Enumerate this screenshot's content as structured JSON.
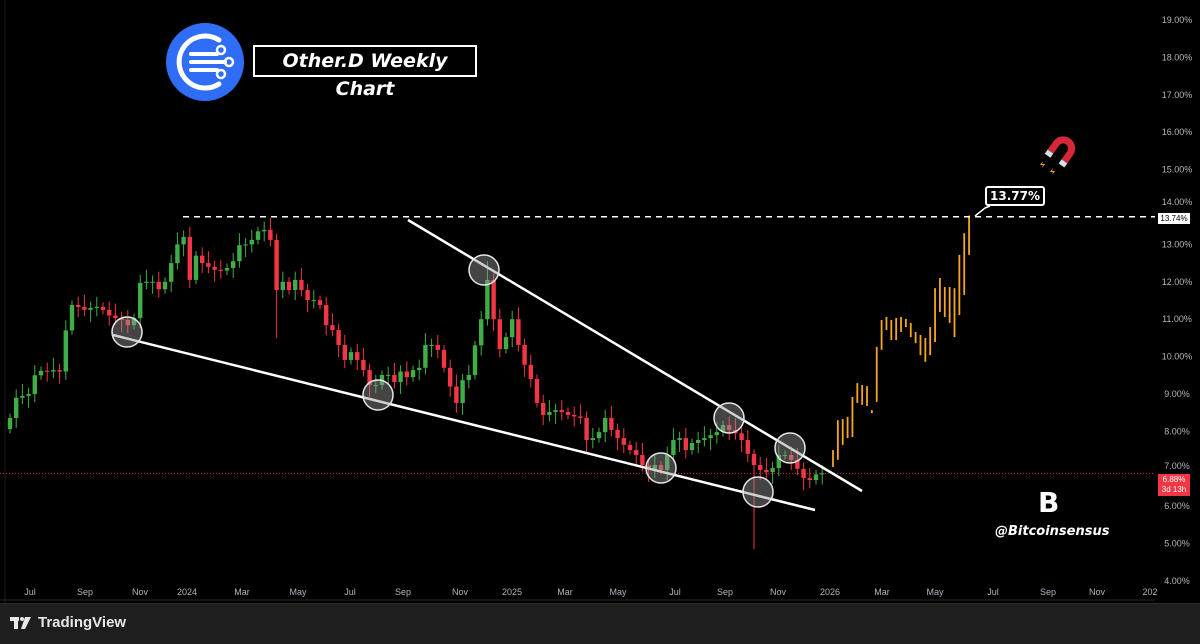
{
  "header": {
    "title": "Other.D Weekly Chart",
    "brand_logo_icon": "circuit-c-logo-icon",
    "brand_color": "#2f6df6"
  },
  "annotations": {
    "target_label": "13.77%",
    "magnet_icon": "magnet-icon",
    "watermark_letter": "B",
    "handle": "@Bitcoinsensus"
  },
  "footer": {
    "brand": "TradingView",
    "logo_icon": "tradingview-logo-icon"
  },
  "chart_data": {
    "type": "candlestick",
    "timeframe": "weekly",
    "y_axis": {
      "ticks": [
        "19.00%",
        "18.00%",
        "17.00%",
        "16.00%",
        "15.00%",
        "14.00%",
        "13.00%",
        "12.00%",
        "11.00%",
        "10.00%",
        "9.00%",
        "8.00%",
        "7.00%",
        "6.00%",
        "5.00%",
        "4.00%"
      ],
      "range": [
        4,
        19
      ],
      "unit": "%"
    },
    "x_axis": {
      "ticks": [
        "Jul",
        "Sep",
        "Nov",
        "2024",
        "Mar",
        "May",
        "Jul",
        "Sep",
        "Nov",
        "2025",
        "Mar",
        "May",
        "Jul",
        "Sep",
        "Nov",
        "2026",
        "Mar",
        "May",
        "Jul",
        "Sep",
        "Nov",
        "202"
      ]
    },
    "grid": false,
    "colors": {
      "up": "#3fae49",
      "down": "#f23645",
      "projection": "#f5a623",
      "lines": "#ffffff"
    },
    "closes": [
      8.36,
      8.9,
      8.95,
      9.0,
      9.5,
      9.62,
      9.6,
      9.64,
      9.6,
      10.7,
      11.38,
      11.33,
      11.25,
      11.3,
      11.33,
      11.25,
      11.1,
      11.03,
      10.98,
      10.84,
      11.03,
      11.97,
      12.0,
      12.0,
      11.8,
      12.0,
      12.5,
      13.0,
      13.2,
      12.05,
      12.7,
      12.5,
      12.4,
      12.32,
      12.3,
      12.37,
      12.55,
      12.98,
      13.0,
      13.12,
      13.35,
      13.39,
      13.12,
      11.78,
      12.0,
      11.78,
      12.05,
      11.78,
      11.51,
      11.51,
      11.38,
      10.84,
      10.71,
      10.31,
      9.91,
      10.12,
      9.91,
      9.64,
      9.24,
      9.24,
      9.51,
      9.51,
      9.32,
      9.6,
      9.45,
      9.64,
      9.7,
      10.31,
      10.31,
      10.18,
      9.7,
      9.2,
      8.76,
      9.37,
      9.51,
      10.3,
      11.0,
      12.05,
      11.0,
      10.2,
      10.52,
      11.0,
      10.31,
      9.78,
      9.4,
      8.76,
      8.44,
      8.52,
      8.57,
      8.52,
      8.44,
      8.4,
      8.36,
      7.77,
      7.82,
      7.98,
      8.36,
      8.04,
      7.82,
      7.64,
      7.5,
      7.37,
      7.1,
      6.97,
      7.1,
      6.97,
      7.37,
      7.77,
      7.82,
      7.5,
      7.69,
      7.77,
      7.82,
      7.9,
      7.98,
      8.17,
      8.04,
      7.95,
      7.77,
      7.4,
      7.1,
      6.97,
      6.91,
      7.02,
      7.37,
      7.37,
      7.24,
      7.0,
      6.75,
      6.7,
      6.85,
      6.88
    ],
    "wick_extremes": [
      {
        "index": 43,
        "low": 10.5
      },
      {
        "index": 120,
        "low": 4.85
      },
      {
        "index": 77,
        "high": 12.55
      },
      {
        "index": 72,
        "low": 8.5
      }
    ],
    "projection_ranges": [
      [
        7.05,
        7.5
      ],
      [
        7.24,
        8.3
      ],
      [
        7.64,
        8.33
      ],
      [
        7.82,
        8.39
      ],
      [
        7.85,
        8.92
      ],
      [
        8.76,
        9.29
      ],
      [
        8.71,
        9.24
      ],
      [
        8.68,
        9.21
      ],
      [
        8.49,
        8.57
      ],
      [
        8.79,
        10.26
      ],
      [
        10.18,
        10.98
      ],
      [
        10.71,
        11.06
      ],
      [
        10.44,
        10.98
      ],
      [
        10.44,
        11.03
      ],
      [
        10.66,
        11.06
      ],
      [
        10.79,
        11.01
      ],
      [
        10.52,
        10.9
      ],
      [
        10.36,
        10.66
      ],
      [
        10.04,
        10.58
      ],
      [
        9.86,
        10.5
      ],
      [
        10.04,
        10.79
      ],
      [
        10.39,
        11.83
      ],
      [
        11.19,
        12.1
      ],
      [
        11.06,
        11.86
      ],
      [
        10.9,
        11.86
      ],
      [
        10.52,
        11.83
      ],
      [
        11.11,
        12.72
      ],
      [
        11.65,
        13.3
      ],
      [
        12.72,
        13.77
      ]
    ],
    "resistance_level": 13.74,
    "resistance_label": "13.74%",
    "current_price": 6.88,
    "current_price_label": "6.88%",
    "countdown": "3d 13h",
    "pattern": "falling wedge"
  }
}
